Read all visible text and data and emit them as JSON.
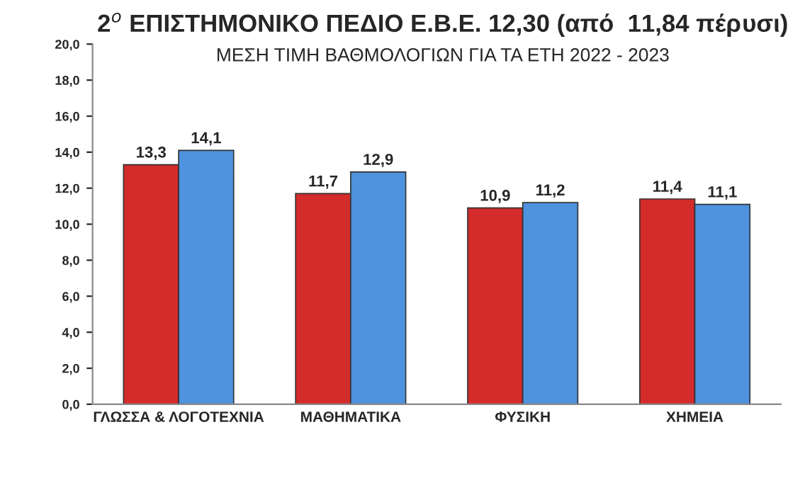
{
  "chart_data": {
    "type": "bar",
    "title": "2$^{ο}$ ΕΠΙΣΤΗΜΟΝΙΚΟ ΠΕΔΙΟ Ε.Β.Ε. 12,30 (από  11,84 πέρυσι)",
    "subtitle": "ΜΕΣΗ ΤΙΜΗ ΒΑΘΜΟΛΟΓΙΩΝ ΓΙΑ ΤΑ ΕΤΗ 2022 - 2023",
    "categories": [
      "ΓΛΩΣΣΑ & ΛΟΓΟΤΕΧΝΙΑ",
      "ΜΑΘΗΜΑΤΙΚΑ",
      "ΦΥΣΙΚΗ",
      "ΧΗΜΕΙΑ"
    ],
    "series": [
      {
        "color": "#d42b2b",
        "values": [
          13.3,
          11.7,
          10.9,
          11.4
        ],
        "value_labels": [
          "13,3",
          "11,7",
          "10,9",
          "11,4"
        ]
      },
      {
        "color": "#4f92de",
        "values": [
          14.1,
          12.9,
          11.2,
          11.1
        ],
        "value_labels": [
          "14,1",
          "12,9",
          "11,2",
          "11,1"
        ]
      }
    ],
    "ylim": [
      0,
      20
    ],
    "yticks": [
      {
        "value": 0,
        "label": "0,0"
      },
      {
        "value": 2,
        "label": "2,0"
      },
      {
        "value": 4,
        "label": "4,0"
      },
      {
        "value": 6,
        "label": "6,0"
      },
      {
        "value": 8,
        "label": "8,0"
      },
      {
        "value": 10,
        "label": "10,0"
      },
      {
        "value": 12,
        "label": "12,0"
      },
      {
        "value": 14,
        "label": "14,0"
      },
      {
        "value": 16,
        "label": "16,0"
      },
      {
        "value": 18,
        "label": "18,0"
      },
      {
        "value": 20,
        "label": "20,0"
      }
    ],
    "grid": false,
    "legend": false
  }
}
